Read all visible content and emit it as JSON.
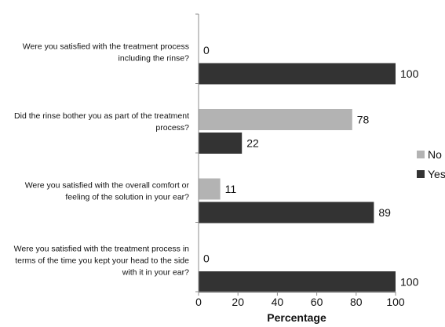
{
  "chart_data": {
    "type": "bar",
    "orientation": "horizontal",
    "categories": [
      [
        "Were you satisfied with the treatment process",
        "including the rinse?"
      ],
      [
        "Did the rinse bother you as part of the treatment",
        "process?"
      ],
      [
        "Were you satisfied with the overall comfort or",
        "feeling of the solution in your ear?"
      ],
      [
        "Were you satisfied with the treatment process in",
        "terms of the time you kept your head to the side",
        "with it in your ear?"
      ]
    ],
    "series": [
      {
        "name": "No",
        "values": [
          0,
          78,
          11,
          0
        ],
        "color": "#b3b3b3"
      },
      {
        "name": "Yes",
        "values": [
          100,
          22,
          89,
          100
        ],
        "color": "#333333"
      }
    ],
    "xlabel": "Percentage",
    "ylabel": "",
    "xlim": [
      0,
      100
    ],
    "xticks": [
      0,
      20,
      40,
      60,
      80,
      100
    ],
    "grid": false,
    "legend": "right"
  }
}
